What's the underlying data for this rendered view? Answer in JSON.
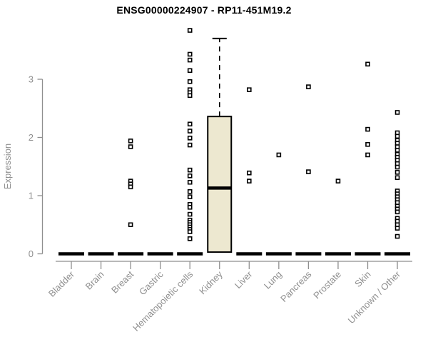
{
  "chart_data": {
    "type": "boxplot",
    "title": "ENSG00000224907 - RP11-451M19.2",
    "ylabel": "Expression",
    "ylim": [
      0,
      3.9
    ],
    "yticks": [
      "0",
      "1",
      "2",
      "3"
    ],
    "grid": false,
    "legend": "none",
    "colors": {
      "box_fill": "#ede8d0",
      "box_stroke": "#000000",
      "median": "#000000",
      "whisker": "#000000",
      "outlier_fill": "#ffffff",
      "outlier_stroke": "#000000",
      "axis": "#8f8f8f",
      "title": "#000000",
      "background": "#ffffff"
    },
    "categories": [
      "Bladder",
      "Brain",
      "Breast",
      "Gastric",
      "Hematopoietic cells",
      "Kidney",
      "Liver",
      "Lung",
      "Pancreas",
      "Prostate",
      "Skin",
      "Unknown / Other"
    ],
    "boxes": [
      {
        "category": "Bladder",
        "q1": 0,
        "median": 0,
        "q3": 0,
        "whisker_low": 0,
        "whisker_high": 0,
        "outliers": []
      },
      {
        "category": "Brain",
        "q1": 0,
        "median": 0,
        "q3": 0,
        "whisker_low": 0,
        "whisker_high": 0,
        "outliers": []
      },
      {
        "category": "Breast",
        "q1": 0,
        "median": 0,
        "q3": 0,
        "whisker_low": 0,
        "whisker_high": 0,
        "outliers": [
          1.94,
          1.84,
          1.25,
          1.2,
          1.15,
          0.5
        ]
      },
      {
        "category": "Gastric",
        "q1": 0,
        "median": 0,
        "q3": 0,
        "whisker_low": 0,
        "whisker_high": 0,
        "outliers": []
      },
      {
        "category": "Hematopoietic cells",
        "q1": 0,
        "median": 0,
        "q3": 0,
        "whisker_low": 0,
        "whisker_high": 0,
        "outliers": [
          3.84,
          3.43,
          3.33,
          3.15,
          2.96,
          2.82,
          2.77,
          2.72,
          2.23,
          2.11,
          1.99,
          1.87,
          1.44,
          1.34,
          1.23,
          1.07,
          0.98,
          0.85,
          0.8,
          0.68,
          0.58,
          0.54,
          0.5,
          0.46,
          0.42,
          0.38,
          0.26
        ]
      },
      {
        "category": "Kidney",
        "q1": 0.03,
        "median": 1.13,
        "q3": 2.36,
        "whisker_low": 0.03,
        "whisker_high": 3.7,
        "outliers": []
      },
      {
        "category": "Liver",
        "q1": 0,
        "median": 0,
        "q3": 0,
        "whisker_low": 0,
        "whisker_high": 0,
        "outliers": [
          2.82,
          1.39,
          1.25
        ]
      },
      {
        "category": "Lung",
        "q1": 0,
        "median": 0,
        "q3": 0,
        "whisker_low": 0,
        "whisker_high": 0,
        "outliers": [
          1.7
        ]
      },
      {
        "category": "Pancreas",
        "q1": 0,
        "median": 0,
        "q3": 0,
        "whisker_low": 0,
        "whisker_high": 0,
        "outliers": [
          2.87,
          1.41
        ]
      },
      {
        "category": "Prostate",
        "q1": 0,
        "median": 0,
        "q3": 0,
        "whisker_low": 0,
        "whisker_high": 0,
        "outliers": [
          1.25
        ]
      },
      {
        "category": "Skin",
        "q1": 0,
        "median": 0,
        "q3": 0,
        "whisker_low": 0,
        "whisker_high": 0,
        "outliers": [
          3.26,
          2.14,
          1.88,
          1.7
        ]
      },
      {
        "category": "Unknown / Other",
        "q1": 0,
        "median": 0,
        "q3": 0,
        "whisker_low": 0,
        "whisker_high": 0,
        "outliers": [
          2.43,
          2.08,
          2.02,
          1.95,
          1.9,
          1.84,
          1.78,
          1.71,
          1.66,
          1.61,
          1.55,
          1.49,
          1.4,
          1.31,
          1.08,
          1.03,
          0.98,
          0.93,
          0.88,
          0.82,
          0.77,
          0.72,
          0.61,
          0.56,
          0.5,
          0.44,
          0.3
        ]
      }
    ]
  }
}
